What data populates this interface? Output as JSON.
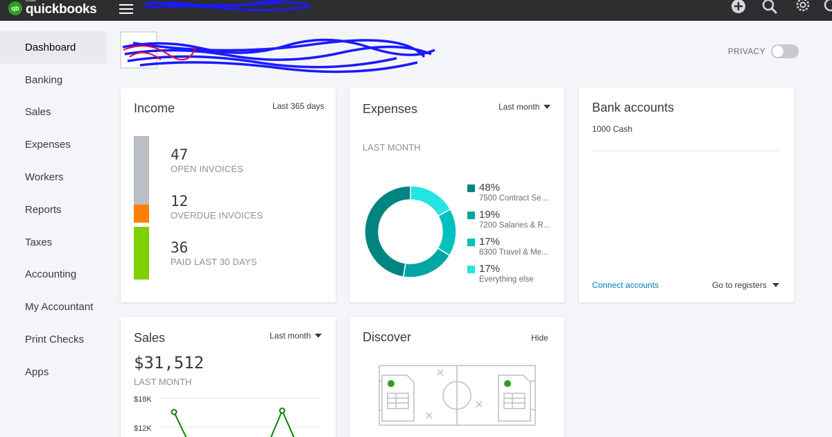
{
  "topbar": {
    "logo_intuit": "intuit",
    "logo_text": "quickbooks",
    "logo_badge": "qb",
    "icons": [
      "hamburger-icon",
      "plus-icon",
      "search-icon",
      "gear-icon",
      "help-icon"
    ]
  },
  "sidebar": {
    "items": [
      {
        "label": "Dashboard",
        "active": true
      },
      {
        "label": "Banking"
      },
      {
        "label": "Sales"
      },
      {
        "label": "Expenses"
      },
      {
        "label": "Workers"
      },
      {
        "label": "Reports"
      },
      {
        "label": "Taxes"
      },
      {
        "label": "Accounting"
      },
      {
        "label": "My Accountant"
      },
      {
        "label": "Print Checks"
      },
      {
        "label": "Apps"
      }
    ]
  },
  "privacy": {
    "label": "PRIVACY",
    "enabled": false
  },
  "income": {
    "title": "Income",
    "range": "Last 365 days",
    "stats": [
      {
        "value": "47",
        "label": "OPEN INVOICES",
        "color": "#babec5"
      },
      {
        "value": "12",
        "label": "OVERDUE INVOICES",
        "color": "#ff8000"
      },
      {
        "value": "36",
        "label": "PAID LAST 30 DAYS",
        "color": "#7fd000"
      }
    ]
  },
  "expenses": {
    "title": "Expenses",
    "range": "Last month",
    "subtitle": "LAST MONTH",
    "legend": [
      {
        "pct": "48%",
        "name": "7500 Contract Se...",
        "color": "#008481",
        "value": 48
      },
      {
        "pct": "19%",
        "name": "7200 Salaries & R...",
        "color": "#00a6a4",
        "value": 19
      },
      {
        "pct": "17%",
        "name": "8300 Travel & Me...",
        "color": "#00c1bf",
        "value": 17
      },
      {
        "pct": "17%",
        "name": "Everything else",
        "color": "#23e3e3",
        "value": 17
      }
    ]
  },
  "bank": {
    "title": "Bank accounts",
    "account": "1000 Cash",
    "connect_label": "Connect accounts",
    "registers_label": "Go to registers"
  },
  "sales": {
    "title": "Sales",
    "range": "Last month",
    "amount": "$31,512",
    "subtitle": "LAST MONTH",
    "y_ticks": [
      "$18K",
      "$12K"
    ]
  },
  "discover": {
    "title": "Discover",
    "hide_label": "Hide"
  },
  "colors": {
    "topbar": "#2d2e30",
    "brand_green": "#2ca01c",
    "link": "#0077c5"
  }
}
